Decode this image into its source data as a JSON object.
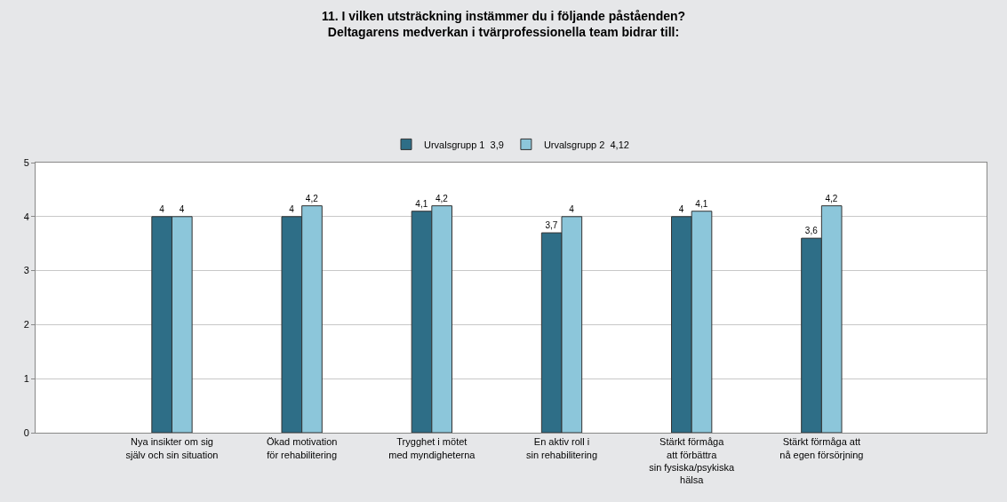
{
  "chart_data": {
    "type": "bar",
    "title": "11. I vilken utsträckning instämmer du i följande påståenden?\nDeltagarens medverkan i tvärprofessionella team bidrar till:",
    "categories": [
      "Nya insikter om sig\nsjälv och sin situation",
      "Ökad motivation\nför rehabilitering",
      "Trygghet i mötet\nmed myndigheterna",
      "En aktiv roll i\nsin rehabilitering",
      "Stärkt förmåga\natt förbättra\nsin fysiska/psykiska\nhälsa",
      "Stärkt förmåga att\nnå egen försörjning"
    ],
    "series": [
      {
        "name": "Urvalsgrupp 1  3,9",
        "color": "#2e6e87",
        "values": [
          4,
          4,
          4.1,
          3.7,
          4,
          3.6
        ],
        "value_labels": [
          "4",
          "4",
          "4,1",
          "3,7",
          "4",
          "3,6"
        ]
      },
      {
        "name": "Urvalsgrupp 2  4,12",
        "color": "#8cc6da",
        "values": [
          4,
          4.2,
          4.2,
          4,
          4.1,
          4.2
        ],
        "value_labels": [
          "4",
          "4,2",
          "4,2",
          "4",
          "4,1",
          "4,2"
        ]
      }
    ],
    "ylim": [
      0,
      5
    ],
    "yticks": [
      0,
      1,
      2,
      3,
      4,
      5
    ],
    "grid": "y",
    "legend": "top"
  }
}
